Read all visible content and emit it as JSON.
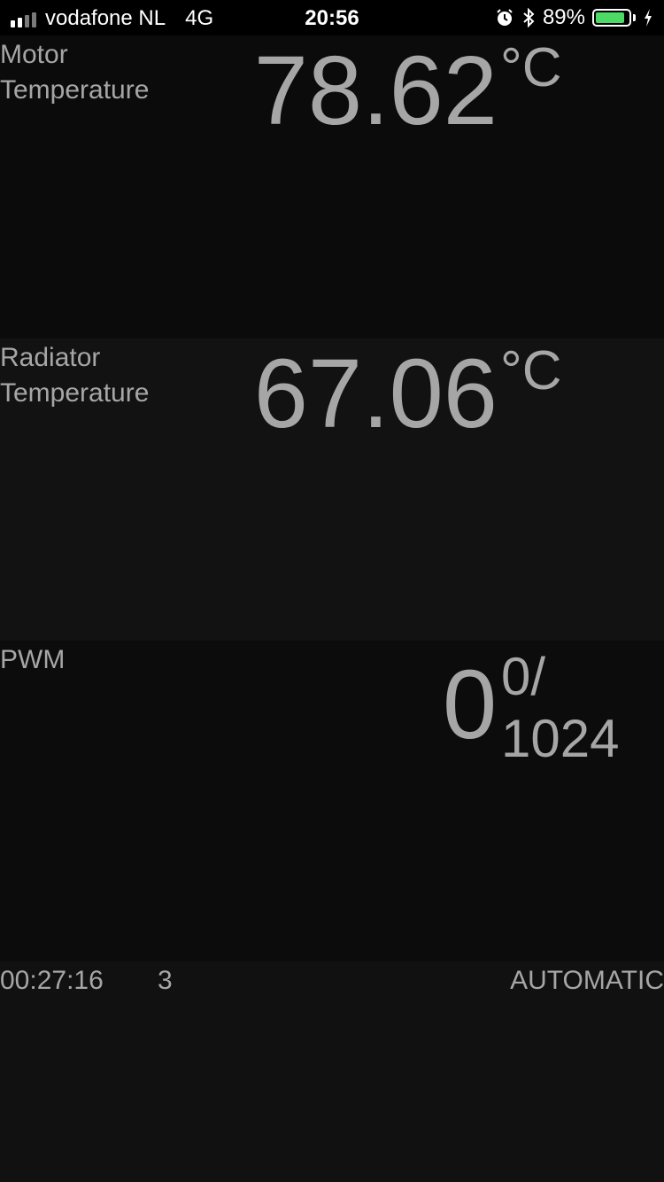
{
  "status_bar": {
    "carrier": "vodafone NL",
    "network": "4G",
    "time": "20:56",
    "battery_percent": "89%",
    "battery_level": 0.89,
    "icons": [
      "signal-icon",
      "alarm-icon",
      "bluetooth-icon",
      "battery-icon",
      "charging-icon"
    ],
    "battery_color": "#4cd964"
  },
  "motor": {
    "label": "Motor\nTemperature",
    "value": "78.62",
    "unit": "°C"
  },
  "radiator": {
    "label": "Radiator\nTemperature",
    "value": "67.06",
    "unit": "°C"
  },
  "pwm": {
    "label": "PWM",
    "value": "0",
    "fraction_top": "0/",
    "fraction_bottom": "1024"
  },
  "footer": {
    "elapsed": "00:27:16",
    "count": "3",
    "mode": "AUTOMATIC"
  }
}
